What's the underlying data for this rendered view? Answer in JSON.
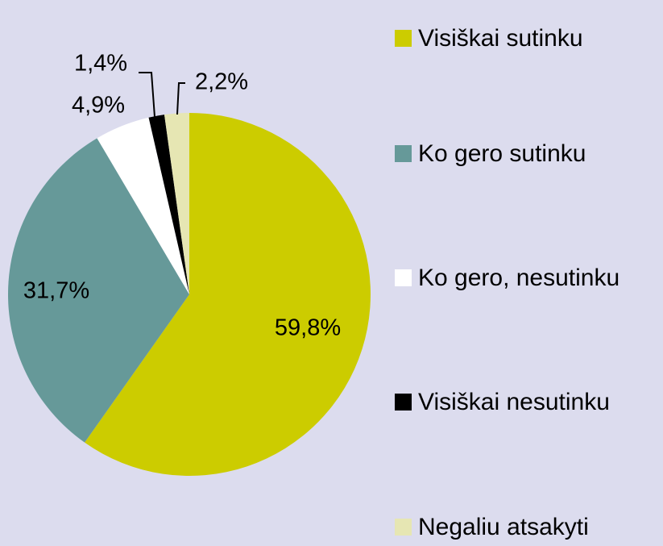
{
  "chart_data": {
    "type": "pie",
    "categories": [
      "Visiškai sutinku",
      "Ko gero sutinku",
      "Ko gero, nesutinku",
      "Visiškai nesutinku",
      "Negaliu atsakyti"
    ],
    "values": [
      59.8,
      31.7,
      4.9,
      1.4,
      2.2
    ],
    "value_labels": [
      "59,8%",
      "31,7%",
      "4,9%",
      "1,4%",
      "2,2%"
    ],
    "colors": [
      "#cccc00",
      "#669999",
      "#ffffff",
      "#000000",
      "#e6e6b3"
    ],
    "legend": "right"
  }
}
